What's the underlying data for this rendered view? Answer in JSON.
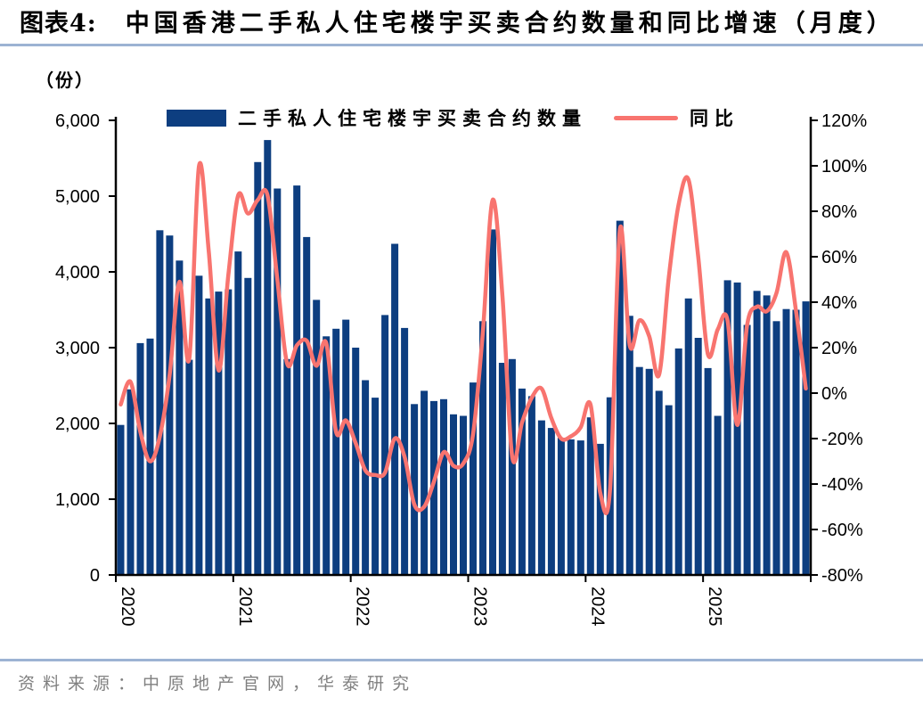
{
  "header": {
    "tag": "图表4:",
    "title": "中国香港二手私人住宅楼宇买卖合约数量和同比增速（月度）"
  },
  "unit_label": "（份）",
  "legend": {
    "bar_label": "二手私人住宅楼宇买卖合约数量",
    "line_label": "同比"
  },
  "footer": {
    "source": "资料来源：中原地产官网，华泰研究"
  },
  "colors": {
    "bar": "#0D3E80",
    "line": "#F8746F",
    "rule": "#9CB3D3",
    "axis": "#000000",
    "source_text": "#808080"
  },
  "chart_data": {
    "type": "bar+line",
    "title": "中国香港二手私人住宅楼宇买卖合约数量和同比增速（月度）",
    "grid": false,
    "legend_position": "top",
    "categories": [
      "2020-01",
      "2020-02",
      "2020-03",
      "2020-04",
      "2020-05",
      "2020-06",
      "2020-07",
      "2020-08",
      "2020-09",
      "2020-10",
      "2020-11",
      "2020-12",
      "2021-01",
      "2021-02",
      "2021-03",
      "2021-04",
      "2021-05",
      "2021-06",
      "2021-07",
      "2021-08",
      "2021-09",
      "2021-10",
      "2021-11",
      "2021-12",
      "2022-01",
      "2022-02",
      "2022-03",
      "2022-04",
      "2022-05",
      "2022-06",
      "2022-07",
      "2022-08",
      "2022-09",
      "2022-10",
      "2022-11",
      "2022-12",
      "2023-01",
      "2023-02",
      "2023-03",
      "2023-04",
      "2023-05",
      "2023-06",
      "2023-07",
      "2023-08",
      "2023-09",
      "2023-10",
      "2023-11",
      "2023-12",
      "2024-01",
      "2024-02",
      "2024-03",
      "2024-04",
      "2024-05",
      "2024-06",
      "2024-07",
      "2024-08",
      "2024-09",
      "2024-10",
      "2024-11",
      "2024-12",
      "2025-01",
      "2025-02",
      "2025-03",
      "2025-04",
      "2025-05",
      "2025-06",
      "2025-07",
      "2025-08",
      "2025-09",
      "2025-10",
      "2025-11"
    ],
    "series": [
      {
        "name": "二手私人住宅楼宇买卖合约数量",
        "type": "bar",
        "axis": "left",
        "unit": "份",
        "values": [
          1980,
          2450,
          3060,
          3120,
          4550,
          4480,
          4150,
          2840,
          3950,
          3650,
          3740,
          3770,
          4270,
          3920,
          5450,
          5740,
          5100,
          2850,
          5140,
          4460,
          3630,
          3150,
          3250,
          3370,
          3000,
          2570,
          2340,
          3430,
          4370,
          3260,
          2255,
          2430,
          2295,
          2320,
          2120,
          2100,
          2540,
          3350,
          4560,
          2800,
          2850,
          2460,
          2360,
          2040,
          1940,
          1810,
          1790,
          1775,
          2080,
          1730,
          2345,
          4675,
          3420,
          2745,
          2720,
          2430,
          2240,
          2990,
          3650,
          3130,
          2730,
          2100,
          3890,
          3860,
          3300,
          3750,
          3690,
          3350,
          3510,
          3500,
          3610
        ]
      },
      {
        "name": "同比",
        "type": "line",
        "axis": "right",
        "unit": "%",
        "values": [
          -5,
          5,
          -17,
          -30,
          -19,
          8,
          49,
          15,
          100,
          62,
          10,
          52,
          87,
          79,
          85,
          87,
          50,
          13,
          21,
          23,
          12,
          22,
          -17,
          -12,
          -22,
          -34,
          -36,
          -35,
          -20,
          -28,
          -49,
          -50,
          -39,
          -26,
          -32,
          -31,
          -18,
          27,
          85,
          43,
          -28,
          -13,
          -2,
          2,
          -11,
          -20,
          -19,
          -15,
          -5,
          -44,
          -42,
          72,
          21,
          32,
          25,
          8,
          51,
          83,
          94,
          60,
          17,
          28,
          32,
          -14,
          30,
          38,
          36,
          44,
          62,
          36,
          2
        ]
      }
    ],
    "left_axis": {
      "label": "（份）",
      "min": 0,
      "max": 6000,
      "step": 1000,
      "tick_labels": [
        "0",
        "1,000",
        "2,000",
        "3,000",
        "4,000",
        "5,000",
        "6,000"
      ]
    },
    "right_axis": {
      "min": -80,
      "max": 120,
      "step": 20,
      "tick_labels": [
        "-80%",
        "-60%",
        "-40%",
        "-20%",
        "0%",
        "20%",
        "40%",
        "60%",
        "80%",
        "100%",
        "120%"
      ]
    },
    "x_axis": {
      "tick_labels": [
        "2020",
        "2021",
        "2022",
        "2023",
        "2024",
        "2025"
      ],
      "tick_month_indexes": [
        0,
        12,
        24,
        36,
        48,
        60
      ]
    }
  }
}
